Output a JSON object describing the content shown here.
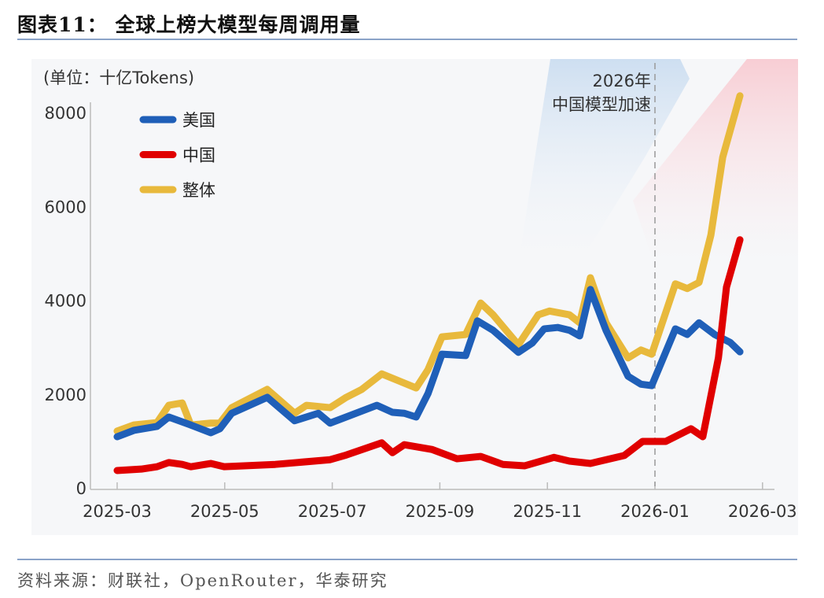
{
  "header": {
    "title": "图表11：  全球上榜大模型每周调用量"
  },
  "footer": {
    "source": "资料来源：财联社，OpenRouter，华泰研究"
  },
  "chart_data": {
    "type": "line",
    "title": "全球上榜大模型每周调用量",
    "ylabel": "(单位：十亿Tokens)",
    "xlabel": "",
    "x_unit": "months since 2025-03",
    "xlim": [
      0,
      12
    ],
    "ylim": [
      0,
      8000
    ],
    "yticks": [
      0,
      2000,
      4000,
      6000,
      8000
    ],
    "ytick_labels": [
      "0",
      "2000",
      "4000",
      "6000",
      "8000"
    ],
    "xticks": [
      0,
      2,
      4,
      6,
      8,
      10,
      12
    ],
    "xtick_labels": [
      "2025-03",
      "2025-05",
      "2025-07",
      "2025-09",
      "2025-11",
      "2026-01",
      "2026-03"
    ],
    "grid": false,
    "legend_position": "top-left",
    "annotation": {
      "x": 10,
      "line1": "2026年",
      "line2": "中国模型加速"
    },
    "series": [
      {
        "name": "美国",
        "color": "#1f5fb8",
        "x": [
          0,
          0.31,
          0.74,
          0.96,
          1.37,
          1.74,
          1.91,
          2.13,
          2.79,
          3.3,
          3.74,
          3.96,
          4.83,
          5.12,
          5.34,
          5.56,
          5.78,
          6.04,
          6.48,
          6.7,
          6.99,
          7.46,
          7.72,
          7.94,
          8.19,
          8.41,
          8.6,
          8.8,
          9.09,
          9.5,
          9.74,
          9.94,
          10.38,
          10.6,
          10.82,
          11.11,
          11.4,
          11.58
        ],
        "values": [
          1090,
          1225,
          1310,
          1510,
          1340,
          1175,
          1260,
          1590,
          1930,
          1430,
          1590,
          1380,
          1760,
          1610,
          1590,
          1510,
          2010,
          2850,
          2820,
          3560,
          3360,
          2890,
          3090,
          3390,
          3420,
          3360,
          3240,
          4230,
          3360,
          2380,
          2210,
          2180,
          3390,
          3270,
          3520,
          3270,
          3100,
          2900
        ]
      },
      {
        "name": "中国",
        "color": "#e00000",
        "x": [
          0,
          0.45,
          0.74,
          0.96,
          1.21,
          1.37,
          1.74,
          1.99,
          2.94,
          3.96,
          4.26,
          4.92,
          5.12,
          5.34,
          5.85,
          6.32,
          6.76,
          7.17,
          7.58,
          8.12,
          8.41,
          8.8,
          9.43,
          9.77,
          10.2,
          10.67,
          10.89,
          11.18,
          11.33,
          11.58
        ],
        "values": [
          370,
          400,
          450,
          540,
          500,
          450,
          520,
          450,
          500,
          600,
          700,
          960,
          750,
          920,
          820,
          620,
          670,
          500,
          470,
          650,
          570,
          520,
          690,
          990,
          990,
          1260,
          1090,
          2770,
          4280,
          5290
        ]
      },
      {
        "name": "整体",
        "color": "#e8b93c",
        "x": [
          0,
          0.31,
          0.74,
          0.96,
          1.21,
          1.37,
          1.74,
          1.91,
          2.13,
          2.79,
          3.3,
          3.52,
          3.96,
          4.26,
          4.55,
          4.92,
          5.56,
          5.78,
          6.04,
          6.48,
          6.76,
          6.99,
          7.46,
          7.83,
          8.04,
          8.41,
          8.6,
          8.8,
          9.09,
          9.5,
          9.74,
          9.94,
          10.38,
          10.6,
          10.82,
          11.04,
          11.26,
          11.58
        ],
        "values": [
          1210,
          1340,
          1390,
          1760,
          1810,
          1340,
          1380,
          1380,
          1710,
          2100,
          1590,
          1760,
          1710,
          1930,
          2100,
          2430,
          2130,
          2520,
          3220,
          3270,
          3940,
          3690,
          3050,
          3690,
          3770,
          3690,
          3520,
          4480,
          3520,
          2770,
          2940,
          2850,
          4350,
          4250,
          4380,
          5390,
          7050,
          8360
        ]
      }
    ]
  }
}
